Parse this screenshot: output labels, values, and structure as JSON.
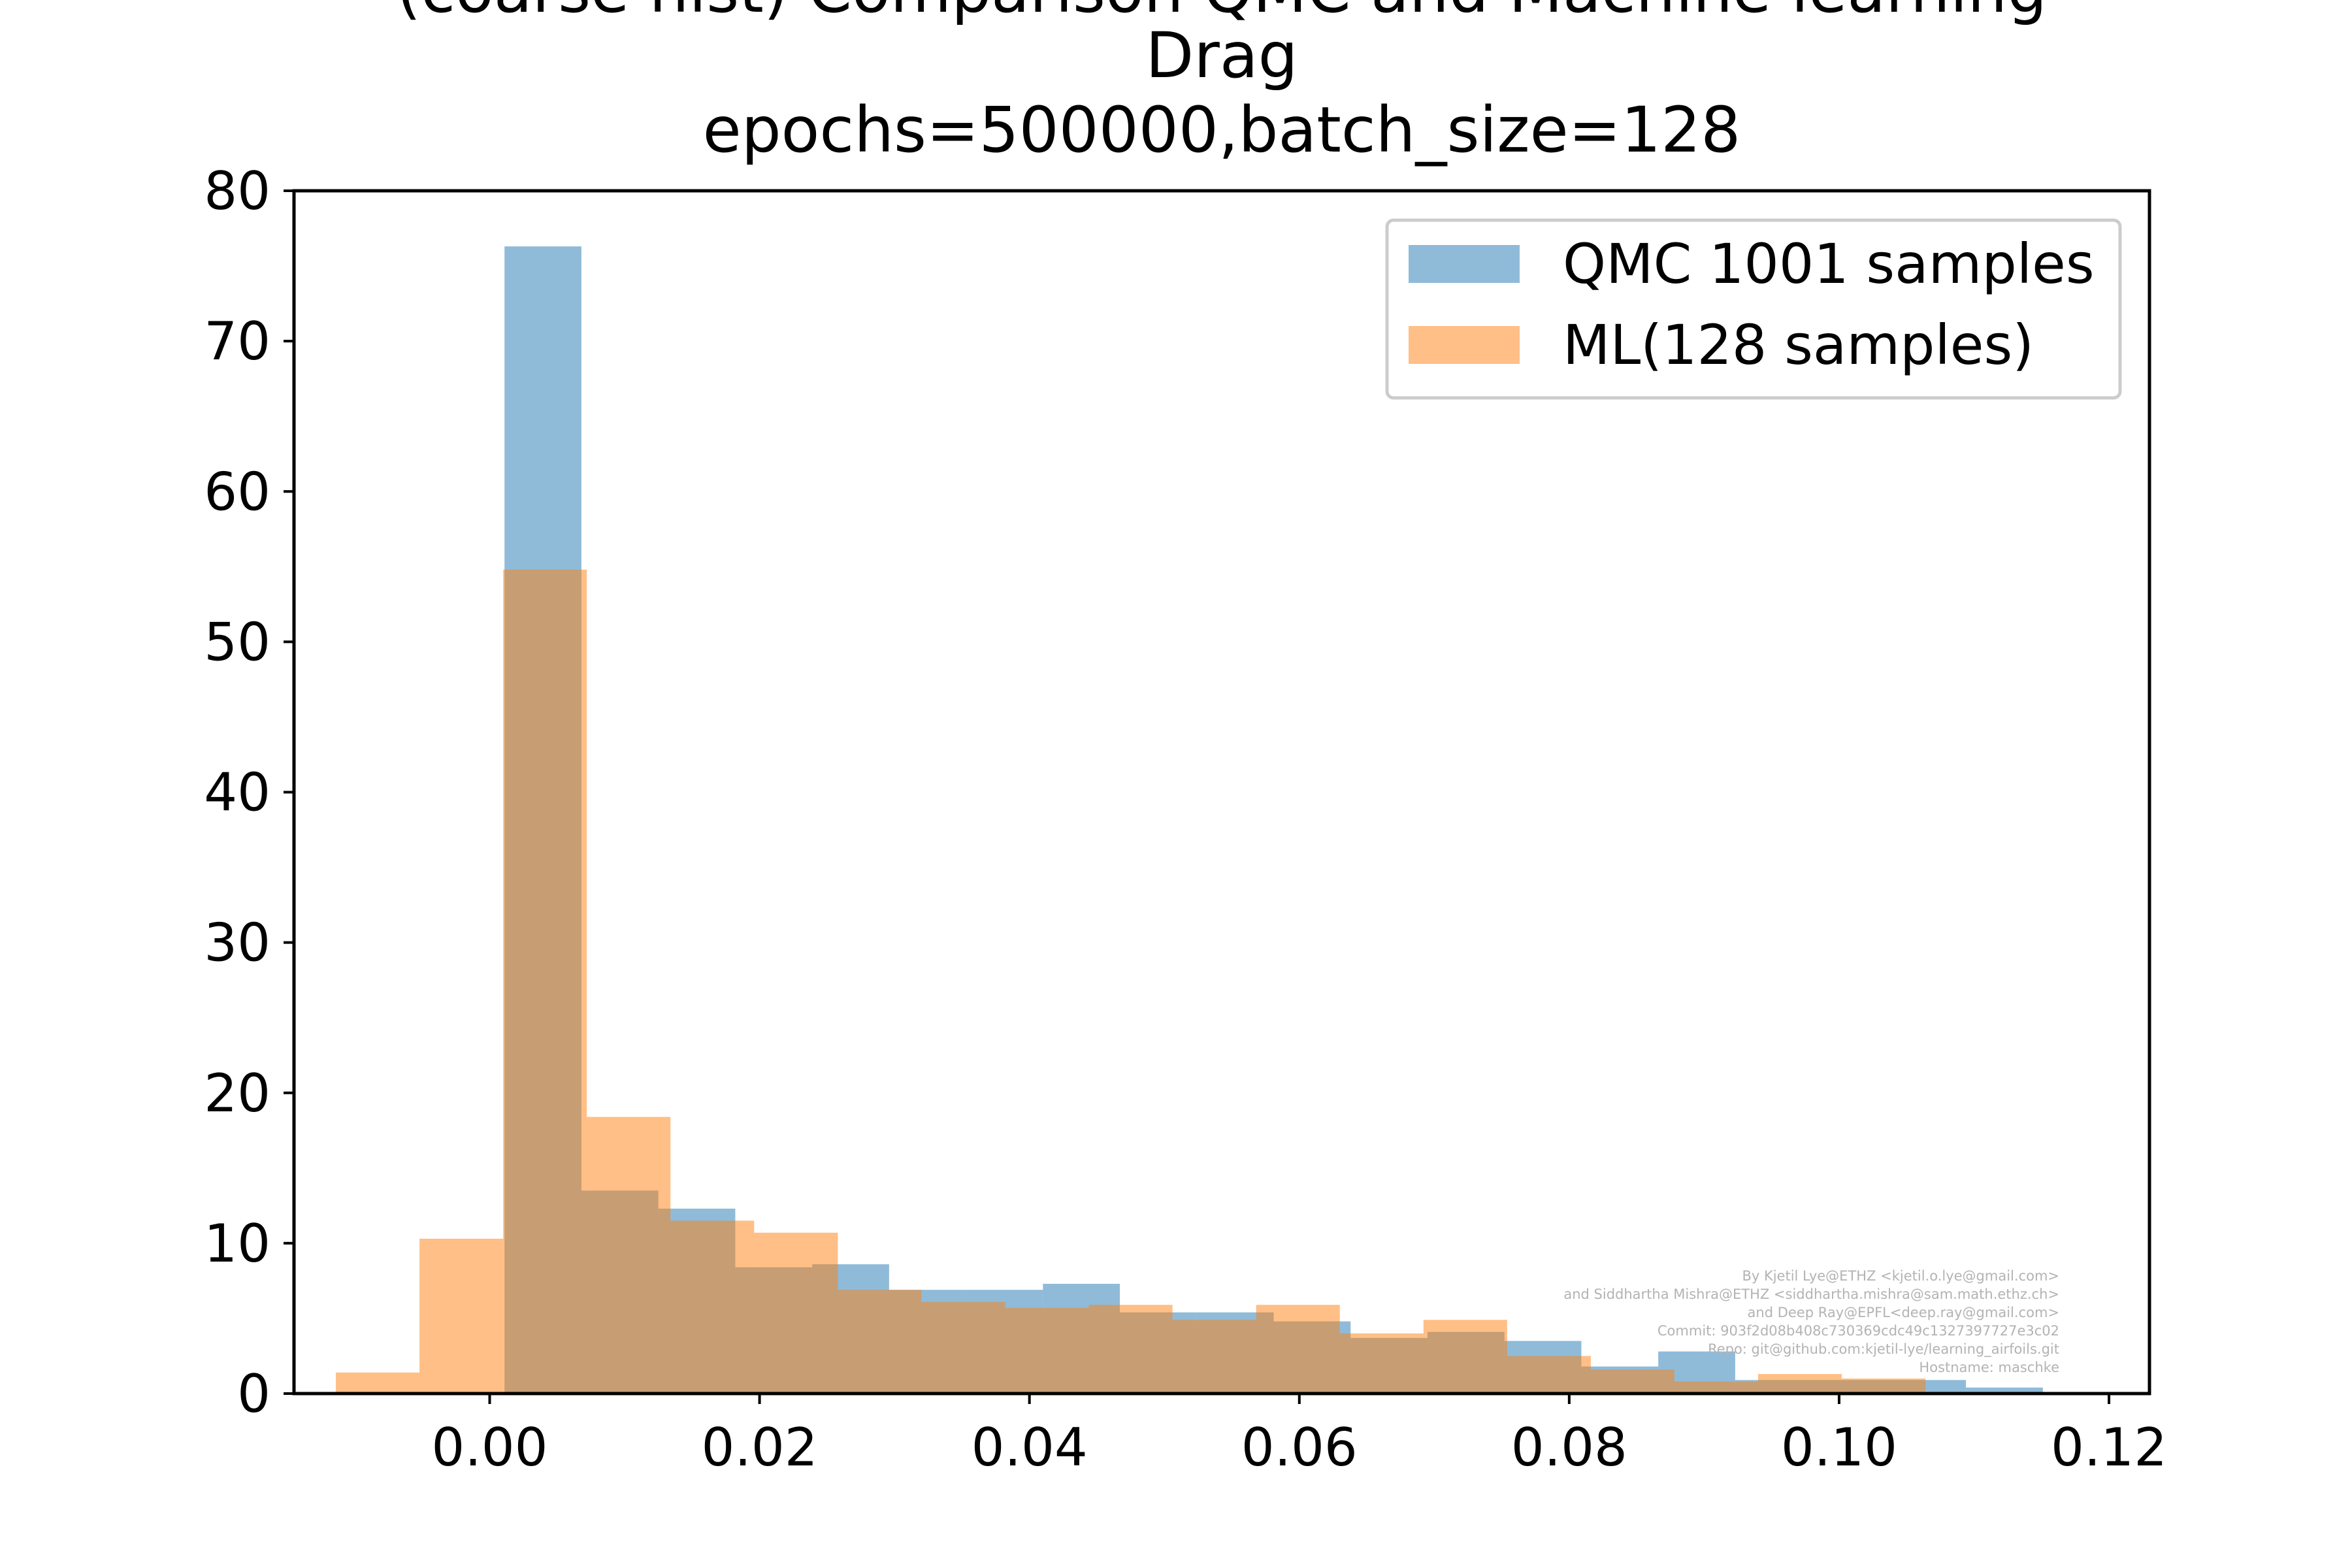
{
  "chart_data": {
    "type": "bar",
    "title_lines": [
      "(coarse hist) Comparison QMC and Machine learning",
      "Drag",
      "epochs=500000,batch_size=128"
    ],
    "xlabel": "",
    "ylabel": "",
    "xlim": [
      -0.0145,
      0.123
    ],
    "ylim": [
      0,
      80
    ],
    "xticks": [
      0.0,
      0.02,
      0.04,
      0.06,
      0.08,
      0.1,
      0.12
    ],
    "xtick_labels": [
      "0.00",
      "0.02",
      "0.04",
      "0.06",
      "0.08",
      "0.10",
      "0.12"
    ],
    "yticks": [
      0,
      10,
      20,
      30,
      40,
      50,
      60,
      70,
      80
    ],
    "ytick_labels": [
      "0",
      "10",
      "20",
      "30",
      "40",
      "50",
      "60",
      "70",
      "80"
    ],
    "grid": false,
    "legend_placement": "upper right",
    "series": [
      {
        "name": "QMC 1001 samples",
        "color": "#1f77b4",
        "opacity": 0.5,
        "bin_edges": [
          0.0011,
          0.0068,
          0.0125,
          0.0182,
          0.0239,
          0.0296,
          0.0353,
          0.041,
          0.0467,
          0.0524,
          0.0581,
          0.0638,
          0.0695,
          0.0752,
          0.0809,
          0.0866,
          0.0923,
          0.098,
          0.1037,
          0.1094,
          0.1151
        ],
        "values": [
          76.3,
          13.5,
          12.3,
          8.4,
          8.6,
          6.9,
          6.9,
          7.3,
          5.4,
          5.4,
          4.8,
          3.7,
          4.1,
          3.5,
          1.8,
          2.8,
          0.9,
          0.9,
          0.9,
          0.4
        ]
      },
      {
        "name": "ML(128 samples)",
        "color": "#ff7f0e",
        "opacity": 0.5,
        "bin_edges": [
          -0.0114,
          -0.0052,
          0.001,
          0.0072,
          0.0134,
          0.0196,
          0.0258,
          0.032,
          0.0382,
          0.0444,
          0.0506,
          0.0568,
          0.063,
          0.0692,
          0.0754,
          0.0816,
          0.0878,
          0.094,
          0.1002,
          0.1064
        ],
        "values": [
          1.4,
          10.3,
          54.8,
          18.4,
          11.5,
          10.7,
          6.9,
          6.1,
          5.7,
          5.9,
          4.9,
          5.9,
          4.0,
          4.9,
          2.5,
          1.6,
          0.8,
          1.3,
          1.0
        ]
      }
    ],
    "annotation_lines": [
      "By Kjetil Lye@ETHZ <kjetil.o.lye@gmail.com>",
      "and Siddhartha Mishra@ETHZ <siddhartha.mishra@sam.math.ethz.ch>",
      "and Deep Ray@EPFL<deep.ray@gmail.com>",
      "Commit: 903f2d08b408c730369cdc49c1327397727e3c02",
      "Repo: git@github.com:kjetil-lye/learning_airfoils.git",
      "Hostname: maschke"
    ]
  }
}
